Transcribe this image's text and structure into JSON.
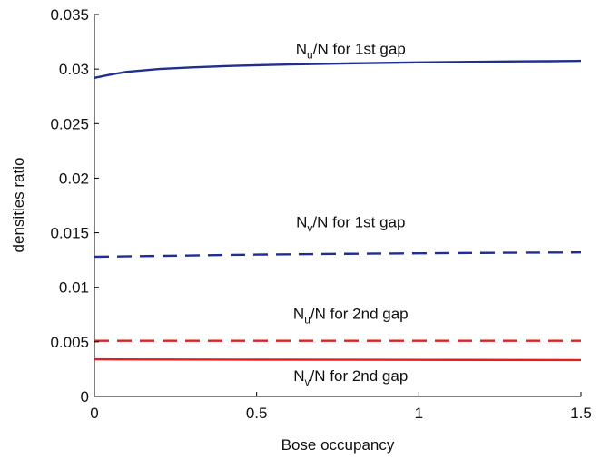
{
  "chart_data": {
    "type": "line",
    "xlabel": "Bose occupancy",
    "ylabel": "densities ratio",
    "xlim": [
      0,
      1.5
    ],
    "ylim": [
      0,
      0.035
    ],
    "xticks": [
      0,
      0.5,
      1,
      1.5
    ],
    "xtick_labels": [
      "0",
      "0.5",
      "1",
      "1.5"
    ],
    "yticks": [
      0,
      0.005,
      0.01,
      0.015,
      0.02,
      0.025,
      0.03,
      0.035
    ],
    "ytick_labels": [
      "0",
      "0.005",
      "0.01",
      "0.015",
      "0.02",
      "0.025",
      "0.03",
      "0.035"
    ],
    "grid": false,
    "legend": "none",
    "series": [
      {
        "color": "#1f2f8f",
        "dash": "solid",
        "x": [
          0,
          0.05,
          0.1,
          0.2,
          0.3,
          0.4,
          0.5,
          0.6,
          0.7,
          0.8,
          0.9,
          1.0,
          1.1,
          1.2,
          1.3,
          1.4,
          1.5
        ],
        "y": [
          0.0292,
          0.0295,
          0.02975,
          0.03,
          0.03015,
          0.03027,
          0.03035,
          0.03042,
          0.03048,
          0.03053,
          0.03057,
          0.03061,
          0.03064,
          0.03067,
          0.0307,
          0.03072,
          0.03075
        ],
        "annotation": {
          "base": "N",
          "sub": "u",
          "rest": "/N for 1st gap",
          "x": 0.79,
          "y": 0.0314
        }
      },
      {
        "color": "#1f2f8f",
        "dash": "dashed",
        "x": [
          0,
          0.25,
          0.5,
          0.75,
          1.0,
          1.25,
          1.5
        ],
        "y": [
          0.0128,
          0.0129,
          0.013,
          0.01307,
          0.01312,
          0.01317,
          0.0132
        ],
        "annotation": {
          "base": "N",
          "sub": "v",
          "rest": "/N for 1st gap",
          "x": 0.79,
          "y": 0.0155
        }
      },
      {
        "color": "#e02020",
        "dash": "dashed",
        "x": [
          0,
          0.5,
          1.0,
          1.5
        ],
        "y": [
          0.0051,
          0.0051,
          0.0051,
          0.0051
        ],
        "annotation": {
          "base": "N",
          "sub": "u",
          "rest": "/N for 2nd gap",
          "x": 0.79,
          "y": 0.0071
        }
      },
      {
        "color": "#e02020",
        "dash": "solid",
        "x": [
          0,
          0.5,
          1.0,
          1.5
        ],
        "y": [
          0.0034,
          0.00337,
          0.00335,
          0.00333
        ],
        "annotation": {
          "base": "N",
          "sub": "v",
          "rest": "/N for 2nd gap",
          "x": 0.79,
          "y": 0.0014
        }
      }
    ]
  }
}
